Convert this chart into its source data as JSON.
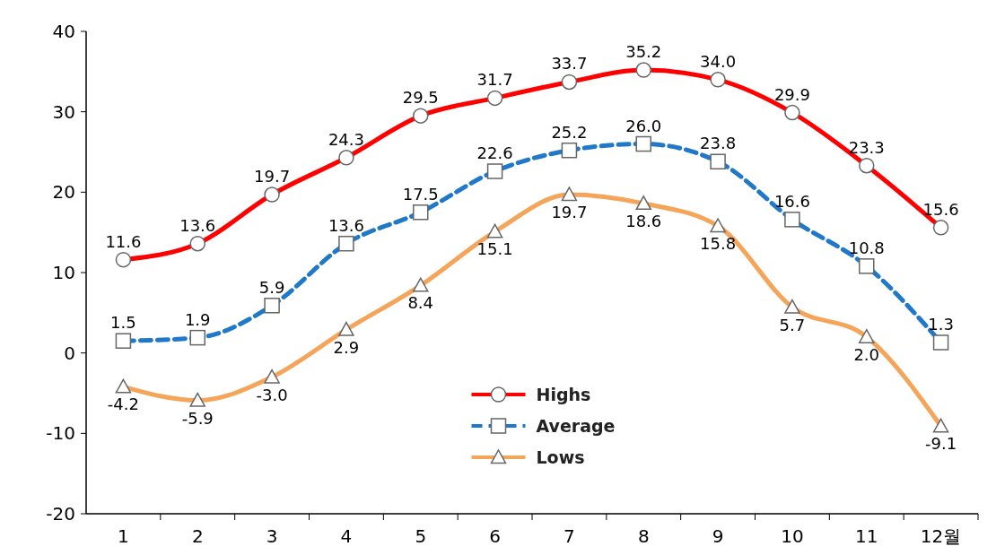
{
  "chart_data": {
    "type": "line",
    "categories": [
      "1",
      "2",
      "3",
      "4",
      "5",
      "6",
      "7",
      "8",
      "9",
      "10",
      "11",
      "12월"
    ],
    "series": [
      {
        "name": "Highs",
        "color": "#ff0000",
        "marker": "circle",
        "line_style": "solid",
        "values": [
          11.6,
          13.6,
          19.7,
          24.3,
          29.5,
          31.7,
          33.7,
          35.2,
          34.0,
          29.9,
          23.3,
          15.6
        ],
        "value_labels": [
          "11.6",
          "13.6",
          "19.7",
          "24.3",
          "29.5",
          "31.7",
          "33.7",
          "35.2",
          "34.0",
          "29.9",
          "23.3",
          "15.6"
        ]
      },
      {
        "name": "Average",
        "color": "#1f78c8",
        "marker": "square",
        "line_style": "dashed",
        "values": [
          1.5,
          1.9,
          5.9,
          13.6,
          17.5,
          22.6,
          25.2,
          26.0,
          23.8,
          16.6,
          10.8,
          1.3
        ],
        "value_labels": [
          "1.5",
          "1.9",
          "5.9",
          "13.6",
          "17.5",
          "22.6",
          "25.2",
          "26.0",
          "23.8",
          "16.6",
          "10.8",
          "1.3"
        ]
      },
      {
        "name": "Lows",
        "color": "#f5a55a",
        "marker": "triangle",
        "line_style": "solid",
        "values": [
          -4.2,
          -5.9,
          -3.0,
          2.9,
          8.4,
          15.1,
          19.7,
          18.6,
          15.8,
          5.7,
          2.0,
          -9.1
        ],
        "value_labels": [
          "-4.2",
          "-5.9",
          "-3.0",
          "2.9",
          "8.4",
          "15.1",
          "19.7",
          "18.6",
          "15.8",
          "5.7",
          "2.0",
          "-9.1"
        ]
      }
    ],
    "ylim": [
      -20,
      40
    ],
    "yticks": [
      -20,
      -10,
      0,
      10,
      20,
      30,
      40
    ],
    "grid": false,
    "legend": "bottom"
  }
}
